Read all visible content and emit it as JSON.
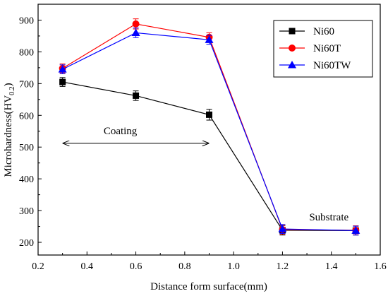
{
  "chart_data": {
    "type": "line",
    "xlabel": "Distance form surface(mm)",
    "ylabel": "Microhardness(HV",
    "ylabel_subscript": "0.2",
    "ylabel_close": ")",
    "xlim": [
      0.2,
      1.6
    ],
    "ylim": [
      160,
      950
    ],
    "x_ticks": [
      0.2,
      0.4,
      0.6,
      0.8,
      1.0,
      1.2,
      1.4,
      1.6
    ],
    "x_tick_labels": [
      "0.2",
      "0.4",
      "0.6",
      "0.8",
      "1.0",
      "1.2",
      "1.4",
      "1.6"
    ],
    "y_ticks": [
      200,
      300,
      400,
      500,
      600,
      700,
      800,
      900
    ],
    "y_tick_labels": [
      "200",
      "300",
      "400",
      "500",
      "600",
      "700",
      "800",
      "900"
    ],
    "grid": false,
    "legend_position": "top-right",
    "x": [
      0.3,
      0.6,
      0.9,
      1.2,
      1.5
    ],
    "series": [
      {
        "name": "Ni60",
        "color": "#000000",
        "marker": "square",
        "values": [
          705,
          662,
          602,
          238,
          237
        ],
        "errors": [
          14,
          15,
          17,
          15,
          14
        ]
      },
      {
        "name": "Ni60T",
        "color": "#ff0000",
        "marker": "circle",
        "values": [
          748,
          888,
          846,
          240,
          238
        ],
        "errors": [
          14,
          16,
          14,
          14,
          14
        ]
      },
      {
        "name": "Ni60TW",
        "color": "#0000ff",
        "marker": "triangle",
        "values": [
          745,
          860,
          838,
          242,
          237
        ],
        "errors": [
          14,
          15,
          14,
          14,
          14
        ]
      }
    ],
    "annotations": [
      {
        "text": "Coating",
        "x": 0.6,
        "y": 552
      },
      {
        "text": "Substrate",
        "x": 1.39,
        "y": 280
      }
    ],
    "arrow": {
      "x_start": 0.3,
      "x_end": 0.9,
      "y": 512
    }
  }
}
